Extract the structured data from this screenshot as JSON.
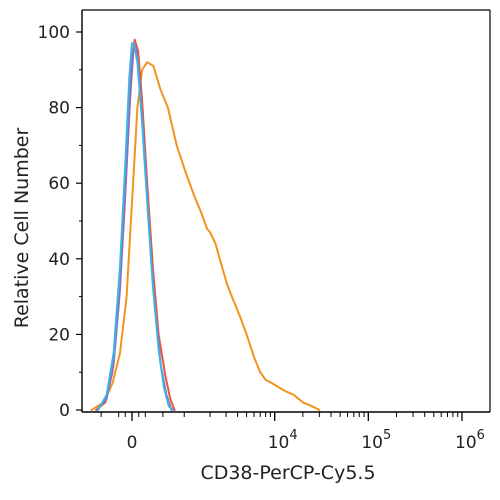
{
  "chart_data": {
    "type": "line",
    "title": "",
    "xlabel": "CD38-PerCP-Cy5.5",
    "ylabel": "Relative Cell Number",
    "x_scale": "biexponential",
    "xlim": [
      -1000,
      1000000
    ],
    "ylim": [
      0,
      100
    ],
    "grid": false,
    "x_tick_labels": [
      {
        "base": "0",
        "exp": "",
        "value": 0
      },
      {
        "base": "10",
        "exp": "4",
        "value": 10000
      },
      {
        "base": "10",
        "exp": "5",
        "value": 100000
      },
      {
        "base": "10",
        "exp": "6",
        "value": 1000000
      }
    ],
    "y_ticks": [
      0,
      20,
      40,
      60,
      80,
      100
    ],
    "colors": {
      "sample": "#f0941e",
      "control_red": "#e8563b",
      "control_purple": "#8a70b8",
      "control_cyan": "#3fb3e6",
      "axis": "#000000"
    },
    "series": [
      {
        "color": "#f0941e",
        "points": [
          [
            -700,
            0
          ],
          [
            -450,
            2
          ],
          [
            -300,
            7
          ],
          [
            -180,
            15
          ],
          [
            -80,
            30
          ],
          [
            0,
            55
          ],
          [
            80,
            80
          ],
          [
            150,
            90
          ],
          [
            230,
            92
          ],
          [
            330,
            91
          ],
          [
            450,
            85
          ],
          [
            600,
            80
          ],
          [
            800,
            70
          ],
          [
            1000,
            64
          ],
          [
            1300,
            57
          ],
          [
            1600,
            52
          ],
          [
            1850,
            48
          ],
          [
            2000,
            47
          ],
          [
            2300,
            44
          ],
          [
            2700,
            38
          ],
          [
            3100,
            33
          ],
          [
            3600,
            29
          ],
          [
            4200,
            25
          ],
          [
            5000,
            20
          ],
          [
            6000,
            14
          ],
          [
            7000,
            10
          ],
          [
            8000,
            8
          ],
          [
            9500,
            7
          ],
          [
            11000,
            6
          ],
          [
            13000,
            5
          ],
          [
            16000,
            4
          ],
          [
            20000,
            2
          ],
          [
            25000,
            1
          ],
          [
            30000,
            0
          ]
        ]
      },
      {
        "color": "#e8563b",
        "points": [
          [
            -600,
            0
          ],
          [
            -420,
            2
          ],
          [
            -300,
            10
          ],
          [
            -200,
            28
          ],
          [
            -120,
            50
          ],
          [
            -50,
            75
          ],
          [
            0,
            92
          ],
          [
            40,
            98
          ],
          [
            90,
            95
          ],
          [
            150,
            82
          ],
          [
            230,
            60
          ],
          [
            320,
            38
          ],
          [
            420,
            20
          ],
          [
            550,
            9
          ],
          [
            650,
            3
          ],
          [
            750,
            0
          ]
        ]
      },
      {
        "color": "#8a70b8",
        "points": [
          [
            -580,
            0
          ],
          [
            -400,
            3
          ],
          [
            -280,
            12
          ],
          [
            -180,
            32
          ],
          [
            -100,
            58
          ],
          [
            -30,
            82
          ],
          [
            20,
            95
          ],
          [
            60,
            96
          ],
          [
            110,
            88
          ],
          [
            180,
            70
          ],
          [
            260,
            48
          ],
          [
            350,
            28
          ],
          [
            460,
            12
          ],
          [
            570,
            4
          ],
          [
            680,
            0
          ]
        ]
      },
      {
        "color": "#3fb3e6",
        "points": [
          [
            -560,
            0
          ],
          [
            -400,
            4
          ],
          [
            -280,
            15
          ],
          [
            -180,
            38
          ],
          [
            -100,
            65
          ],
          [
            -40,
            88
          ],
          [
            0,
            97
          ],
          [
            30,
            97
          ],
          [
            80,
            92
          ],
          [
            150,
            76
          ],
          [
            230,
            55
          ],
          [
            320,
            33
          ],
          [
            420,
            16
          ],
          [
            520,
            6
          ],
          [
            620,
            1
          ],
          [
            720,
            0
          ]
        ]
      }
    ]
  }
}
